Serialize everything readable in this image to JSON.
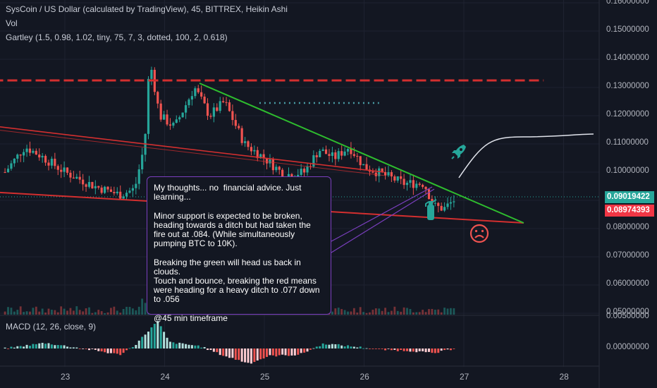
{
  "legend": {
    "title": "SysCoin / US Dollar (calculated by TradingView), 45, BITTREX, Heikin Ashi",
    "vol": "Vol",
    "gartley": "Gartley (1.5, 0.98, 1.02, tiny, 75, 7, 3, dotted, 100, 2, 0.618)",
    "macd": "MACD (12, 26, close, 9)"
  },
  "price_axis": {
    "labels": [
      "0.16000000",
      "0.15000000",
      "0.14000000",
      "0.13000000",
      "0.12000000",
      "0.11000000",
      "0.10000000",
      "0.08000000",
      "0.07000000",
      "0.06000000",
      "0.05000000"
    ],
    "current_price": "0.09019422",
    "red_level": "0.08974393",
    "current_color": "#26a69a",
    "red_color": "#f23645"
  },
  "macd_axis": {
    "labels": [
      "0.00500000",
      "0.00000000"
    ]
  },
  "date_axis": [
    "23",
    "24",
    "25",
    "26",
    "27",
    "28"
  ],
  "note": {
    "text": "My thoughts... no  financial advice. Just learning...\n\nMinor support is expected to be broken, heading towards a ditch but had taken the fire out at .084. (While simultaneously pumping BTC to 10K).\n\nBreaking the green will head us back in clouds.\nTouch and bounce, breaking the red means were heading for a heavy ditch to .077 down to .056\n\n@45 min timeframe"
  },
  "icons": [
    "rocket-icon",
    "fire-extinguisher-icon",
    "sad-face-icon"
  ],
  "chart_data": {
    "type": "candlestick",
    "symbol": "SysCoin / US Dollar",
    "x_axis_ticks": [
      "23",
      "24",
      "25",
      "26",
      "27",
      "28"
    ],
    "ylim": [
      0.05,
      0.16
    ],
    "grid": true,
    "up_color": "#26a69a",
    "down_color": "#ef5350",
    "price_path": [
      {
        "x": 22.4,
        "y": 0.1
      },
      {
        "x": 22.6,
        "y": 0.109
      },
      {
        "x": 22.75,
        "y": 0.106
      },
      {
        "x": 23.0,
        "y": 0.1
      },
      {
        "x": 23.3,
        "y": 0.095
      },
      {
        "x": 23.55,
        "y": 0.092
      },
      {
        "x": 23.7,
        "y": 0.094
      },
      {
        "x": 23.8,
        "y": 0.11
      },
      {
        "x": 23.85,
        "y": 0.14
      },
      {
        "x": 23.95,
        "y": 0.12
      },
      {
        "x": 24.1,
        "y": 0.116
      },
      {
        "x": 24.3,
        "y": 0.13
      },
      {
        "x": 24.45,
        "y": 0.12
      },
      {
        "x": 24.6,
        "y": 0.125
      },
      {
        "x": 24.8,
        "y": 0.11
      },
      {
        "x": 25.0,
        "y": 0.105
      },
      {
        "x": 25.2,
        "y": 0.099
      },
      {
        "x": 25.4,
        "y": 0.1
      },
      {
        "x": 25.55,
        "y": 0.108
      },
      {
        "x": 25.7,
        "y": 0.105
      },
      {
        "x": 25.85,
        "y": 0.109
      },
      {
        "x": 26.0,
        "y": 0.102
      },
      {
        "x": 26.2,
        "y": 0.099
      },
      {
        "x": 26.4,
        "y": 0.096
      },
      {
        "x": 26.6,
        "y": 0.096
      },
      {
        "x": 26.7,
        "y": 0.088
      },
      {
        "x": 26.8,
        "y": 0.087
      },
      {
        "x": 26.9,
        "y": 0.09
      }
    ],
    "macd_range": [
      -0.0035,
      0.005
    ],
    "macd_hist": [
      {
        "x": 22.4,
        "y": 0.0
      },
      {
        "x": 22.8,
        "y": 0.0009
      },
      {
        "x": 23.3,
        "y": -0.0003
      },
      {
        "x": 23.55,
        "y": -0.001
      },
      {
        "x": 23.7,
        "y": 0.0005
      },
      {
        "x": 23.93,
        "y": 0.0044
      },
      {
        "x": 24.05,
        "y": 0.001
      },
      {
        "x": 24.35,
        "y": 0.0004
      },
      {
        "x": 24.6,
        "y": -0.0012
      },
      {
        "x": 24.85,
        "y": -0.0024
      },
      {
        "x": 25.05,
        "y": -0.0012
      },
      {
        "x": 25.35,
        "y": -0.001
      },
      {
        "x": 25.6,
        "y": 0.0008
      },
      {
        "x": 25.9,
        "y": 0.0003
      },
      {
        "x": 26.2,
        "y": -0.0002
      },
      {
        "x": 26.5,
        "y": -0.0004
      },
      {
        "x": 26.7,
        "y": -0.0008
      },
      {
        "x": 26.9,
        "y": 0.0
      }
    ],
    "annotations": {
      "green_trendline": [
        {
          "x": 24.35,
          "y": 0.1315
        },
        {
          "x": 27.6,
          "y": 0.082
        }
      ],
      "red_support_line": [
        {
          "x": 22.0,
          "y": 0.0935
        },
        {
          "x": 27.6,
          "y": 0.082
        }
      ],
      "red_channel_upper": [
        {
          "x": 22.0,
          "y": 0.1175
        },
        {
          "x": 26.2,
          "y": 0.1
        }
      ],
      "red_dashed_resistance": {
        "y": 0.1325,
        "x_range": [
          22.0,
          27.8
        ]
      },
      "dotted_level": {
        "y": 0.1245,
        "x_range": [
          24.95,
          26.15
        ]
      },
      "projection_curve": [
        {
          "x": 26.95,
          "y": 0.098
        },
        {
          "x": 27.2,
          "y": 0.111
        },
        {
          "x": 27.6,
          "y": 0.1125
        },
        {
          "x": 28.3,
          "y": 0.1135
        }
      ]
    }
  }
}
